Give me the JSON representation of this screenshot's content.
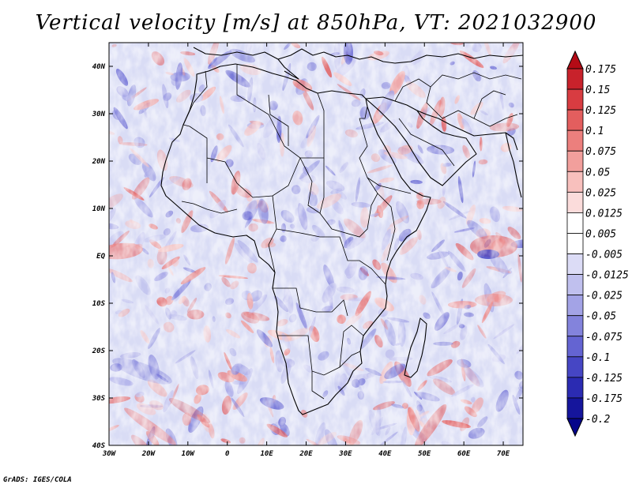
{
  "title": "Vertical velocity [m/s] at 850hPa, VT: 2021032900",
  "credit": "GrADS: IGES/COLA",
  "map": {
    "lon_range": [
      -30,
      75
    ],
    "lat_range": [
      -40,
      45
    ],
    "lon_ticks": [
      "30W",
      "20W",
      "10W",
      "0",
      "10E",
      "20E",
      "30E",
      "40E",
      "50E",
      "60E",
      "70E"
    ],
    "lat_ticks": [
      "40S",
      "30S",
      "20S",
      "10S",
      "EQ",
      "10N",
      "20N",
      "30N",
      "40N"
    ],
    "field": "vertical velocity (m/s)",
    "background_color": "#d9dcf5"
  },
  "colorbar": {
    "labels": [
      "0.175",
      "0.15",
      "0.125",
      "0.1",
      "0.075",
      "0.05",
      "0.025",
      "0.0125",
      "0.005",
      "-0.005",
      "-0.0125",
      "-0.025",
      "-0.05",
      "-0.075",
      "-0.1",
      "-0.125",
      "-0.175",
      "-0.2"
    ],
    "colors": [
      "#b40b16",
      "#c8222b",
      "#d83c41",
      "#e35e5e",
      "#ec7f7d",
      "#f29f9c",
      "#f8c0bd",
      "#fbdcdb",
      "#ffffff",
      "#ffffff",
      "#dcdcf6",
      "#c0c0ee",
      "#a3a3e6",
      "#8383dc",
      "#6464d2",
      "#4646c4",
      "#2b2bb2",
      "#15159c",
      "#05058a"
    ]
  }
}
